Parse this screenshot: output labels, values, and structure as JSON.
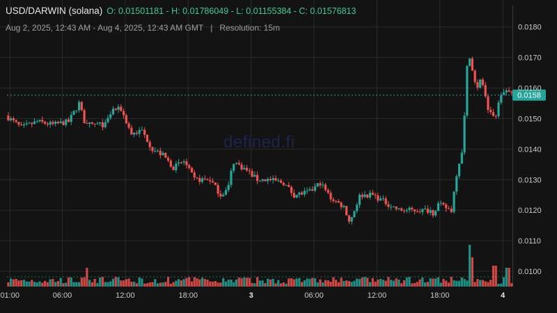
{
  "header": {
    "pair": "USD/DARWIN (solana)",
    "ohlc": "O: 0.01501181 - H: 0.01786049 - L: 0.01155384 - C: 0.01576813",
    "range": "Aug 2, 2025, 12:43 AM - Aug 4, 2025, 12:43 AM GMT",
    "separator": "|",
    "resolution": "Resolution: 15m"
  },
  "watermark": "defined.fi",
  "colors": {
    "up": "#26a69a",
    "down": "#ef5350",
    "grid": "#2a2a2a",
    "price_line": "#26a69a",
    "background": "#131313"
  },
  "chart_data": {
    "type": "candlestick",
    "title": "USD/DARWIN (solana)",
    "resolution": "15m",
    "ylim": [
      0.0095,
      0.0187
    ],
    "y_ticks": [
      "0.0180",
      "0.0170",
      "0.0160",
      "0.0150",
      "0.0140",
      "0.0130",
      "0.0120",
      "0.0110",
      "0.0100"
    ],
    "y_tick_values": [
      0.018,
      0.017,
      0.016,
      0.015,
      0.014,
      0.013,
      0.012,
      0.011,
      0.01
    ],
    "x_ticks": [
      {
        "label": "01:00",
        "hour": 0.28,
        "bold": false
      },
      {
        "label": "06:00",
        "hour": 5.28,
        "bold": false
      },
      {
        "label": "12:00",
        "hour": 11.28,
        "bold": false
      },
      {
        "label": "18:00",
        "hour": 17.28,
        "bold": false
      },
      {
        "label": "3",
        "hour": 23.28,
        "bold": true
      },
      {
        "label": "06:00",
        "hour": 29.28,
        "bold": false
      },
      {
        "label": "12:00",
        "hour": 35.28,
        "bold": false
      },
      {
        "label": "18:00",
        "hour": 41.28,
        "bold": false
      },
      {
        "label": "4",
        "hour": 47.28,
        "bold": true
      }
    ],
    "x_range_hours": [
      0,
      48.2
    ],
    "last_price": 0.01576813,
    "last_price_label": "0.0158",
    "price_path": [
      [
        0,
        0.0151
      ],
      [
        1.5,
        0.0147
      ],
      [
        3,
        0.0149
      ],
      [
        4.5,
        0.0148
      ],
      [
        6,
        0.0149
      ],
      [
        7,
        0.0155
      ],
      [
        7.6,
        0.0148
      ],
      [
        9.5,
        0.0148
      ],
      [
        10.2,
        0.0153
      ],
      [
        11,
        0.0153
      ],
      [
        12,
        0.0145
      ],
      [
        13,
        0.0146
      ],
      [
        14,
        0.014
      ],
      [
        15,
        0.0138
      ],
      [
        16,
        0.0134
      ],
      [
        17,
        0.0136
      ],
      [
        18,
        0.013
      ],
      [
        19.5,
        0.013
      ],
      [
        20.5,
        0.0125
      ],
      [
        21.2,
        0.0127
      ],
      [
        21.7,
        0.0136
      ],
      [
        23,
        0.0133
      ],
      [
        24,
        0.013
      ],
      [
        25,
        0.013
      ],
      [
        26.5,
        0.0129
      ],
      [
        27.5,
        0.0125
      ],
      [
        29,
        0.0126
      ],
      [
        30,
        0.0129
      ],
      [
        31,
        0.0124
      ],
      [
        32.3,
        0.0121
      ],
      [
        32.8,
        0.0116
      ],
      [
        33.8,
        0.0125
      ],
      [
        35,
        0.0125
      ],
      [
        36,
        0.0123
      ],
      [
        37.5,
        0.012
      ],
      [
        39,
        0.012
      ],
      [
        40.5,
        0.012
      ],
      [
        40.8,
        0.0119
      ],
      [
        41.2,
        0.0122
      ],
      [
        42.5,
        0.012
      ],
      [
        43,
        0.0132
      ],
      [
        43.6,
        0.0141
      ],
      [
        44.1,
        0.0173
      ],
      [
        44.9,
        0.016
      ],
      [
        45.4,
        0.0163
      ],
      [
        46,
        0.0152
      ],
      [
        46.7,
        0.015
      ],
      [
        47.2,
        0.0158
      ],
      [
        47.8,
        0.0159
      ],
      [
        48,
        0.0158
      ]
    ],
    "volume_spikes": [
      [
        44.1,
        1.0
      ],
      [
        44.4,
        0.7
      ],
      [
        7.6,
        0.45
      ],
      [
        46.5,
        0.5
      ],
      [
        47.8,
        0.45
      ]
    ]
  }
}
